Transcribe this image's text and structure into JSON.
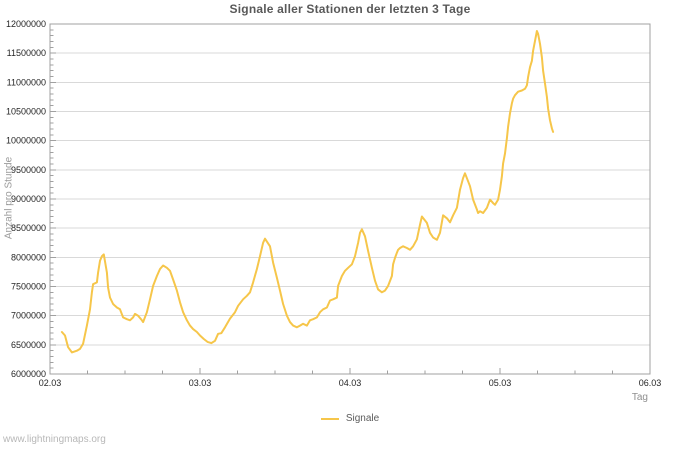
{
  "page": {
    "watermark": "www.lightningmaps.org"
  },
  "chart_data": {
    "type": "line",
    "title": "Signale aller Stationen der letzten 3 Tage",
    "xlabel": "Tag",
    "ylabel": "Anzahl pro Stunde",
    "x_tick_labels": [
      "02.03",
      "03.03",
      "04.03",
      "05.03",
      "06.03"
    ],
    "x_range_hours": [
      0,
      96
    ],
    "x_minor_step_hours": 6,
    "ylim": [
      6000000,
      12000000
    ],
    "y_major_step": 500000,
    "y_minor_step": 100000,
    "grid": "horizontal-major-only",
    "legend_position": "bottom-center",
    "colors": {
      "line": "#f6c64a",
      "grid": "#d9d9d9",
      "frame": "#a0a0a0",
      "tick_text": "#262626",
      "title_text": "#595959",
      "muted_text": "#8f8f8f",
      "watermark_text": "#b8b8b8"
    },
    "series": [
      {
        "name": "Signale",
        "color": "#f6c64a",
        "points_hours_value": [
          [
            1.9,
            6720000
          ],
          [
            2.4,
            6660000
          ],
          [
            2.9,
            6460000
          ],
          [
            3.5,
            6370000
          ],
          [
            4.3,
            6400000
          ],
          [
            4.8,
            6430000
          ],
          [
            5.3,
            6520000
          ],
          [
            5.9,
            6830000
          ],
          [
            6.4,
            7110000
          ],
          [
            6.7,
            7400000
          ],
          [
            6.9,
            7540000
          ],
          [
            7.5,
            7570000
          ],
          [
            7.7,
            7740000
          ],
          [
            8.0,
            7940000
          ],
          [
            8.3,
            8020000
          ],
          [
            8.6,
            8050000
          ],
          [
            9.1,
            7740000
          ],
          [
            9.3,
            7480000
          ],
          [
            9.6,
            7310000
          ],
          [
            10.1,
            7200000
          ],
          [
            10.4,
            7170000
          ],
          [
            10.7,
            7140000
          ],
          [
            11.2,
            7110000
          ],
          [
            11.7,
            6970000
          ],
          [
            12.3,
            6940000
          ],
          [
            12.8,
            6920000
          ],
          [
            13.3,
            6970000
          ],
          [
            13.6,
            7030000
          ],
          [
            14.1,
            7000000
          ],
          [
            14.7,
            6920000
          ],
          [
            14.9,
            6890000
          ],
          [
            15.5,
            7060000
          ],
          [
            16.0,
            7280000
          ],
          [
            16.5,
            7510000
          ],
          [
            17.1,
            7680000
          ],
          [
            17.6,
            7800000
          ],
          [
            18.1,
            7860000
          ],
          [
            18.7,
            7820000
          ],
          [
            19.2,
            7770000
          ],
          [
            19.7,
            7620000
          ],
          [
            20.3,
            7430000
          ],
          [
            20.8,
            7230000
          ],
          [
            21.3,
            7060000
          ],
          [
            21.9,
            6920000
          ],
          [
            22.4,
            6830000
          ],
          [
            22.9,
            6770000
          ],
          [
            23.5,
            6720000
          ],
          [
            24.0,
            6660000
          ],
          [
            24.6,
            6600000
          ],
          [
            25.2,
            6550000
          ],
          [
            25.8,
            6530000
          ],
          [
            26.4,
            6570000
          ],
          [
            26.9,
            6690000
          ],
          [
            27.4,
            6700000
          ],
          [
            28.0,
            6800000
          ],
          [
            28.8,
            6950000
          ],
          [
            29.6,
            7060000
          ],
          [
            30.1,
            7170000
          ],
          [
            30.9,
            7280000
          ],
          [
            31.5,
            7340000
          ],
          [
            32.0,
            7400000
          ],
          [
            32.5,
            7570000
          ],
          [
            33.1,
            7800000
          ],
          [
            33.6,
            8020000
          ],
          [
            34.1,
            8250000
          ],
          [
            34.4,
            8320000
          ],
          [
            35.2,
            8190000
          ],
          [
            35.7,
            7910000
          ],
          [
            36.3,
            7650000
          ],
          [
            36.8,
            7430000
          ],
          [
            37.3,
            7200000
          ],
          [
            37.9,
            7000000
          ],
          [
            38.4,
            6890000
          ],
          [
            38.9,
            6830000
          ],
          [
            39.5,
            6800000
          ],
          [
            40.0,
            6830000
          ],
          [
            40.5,
            6860000
          ],
          [
            41.1,
            6830000
          ],
          [
            41.6,
            6920000
          ],
          [
            42.1,
            6940000
          ],
          [
            42.7,
            6970000
          ],
          [
            43.2,
            7060000
          ],
          [
            43.7,
            7110000
          ],
          [
            44.3,
            7140000
          ],
          [
            44.8,
            7260000
          ],
          [
            45.3,
            7280000
          ],
          [
            45.9,
            7310000
          ],
          [
            46.1,
            7510000
          ],
          [
            46.7,
            7680000
          ],
          [
            47.2,
            7770000
          ],
          [
            47.7,
            7820000
          ],
          [
            48.3,
            7880000
          ],
          [
            48.8,
            8020000
          ],
          [
            49.3,
            8250000
          ],
          [
            49.6,
            8420000
          ],
          [
            49.9,
            8480000
          ],
          [
            50.4,
            8360000
          ],
          [
            50.9,
            8110000
          ],
          [
            51.5,
            7820000
          ],
          [
            52.0,
            7600000
          ],
          [
            52.5,
            7450000
          ],
          [
            53.1,
            7400000
          ],
          [
            53.6,
            7430000
          ],
          [
            54.1,
            7510000
          ],
          [
            54.7,
            7680000
          ],
          [
            54.9,
            7880000
          ],
          [
            55.2,
            7990000
          ],
          [
            55.5,
            8080000
          ],
          [
            55.7,
            8130000
          ],
          [
            56.0,
            8160000
          ],
          [
            56.5,
            8190000
          ],
          [
            57.1,
            8160000
          ],
          [
            57.6,
            8130000
          ],
          [
            58.1,
            8190000
          ],
          [
            58.7,
            8310000
          ],
          [
            59.2,
            8560000
          ],
          [
            59.5,
            8700000
          ],
          [
            60.3,
            8590000
          ],
          [
            60.8,
            8420000
          ],
          [
            61.3,
            8340000
          ],
          [
            61.9,
            8300000
          ],
          [
            62.4,
            8420000
          ],
          [
            62.9,
            8720000
          ],
          [
            63.5,
            8670000
          ],
          [
            64.0,
            8600000
          ],
          [
            64.5,
            8720000
          ],
          [
            65.1,
            8850000
          ],
          [
            65.6,
            9160000
          ],
          [
            66.1,
            9360000
          ],
          [
            66.4,
            9440000
          ],
          [
            67.2,
            9220000
          ],
          [
            67.7,
            8990000
          ],
          [
            68.3,
            8820000
          ],
          [
            68.5,
            8760000
          ],
          [
            68.8,
            8790000
          ],
          [
            69.3,
            8760000
          ],
          [
            69.9,
            8850000
          ],
          [
            70.4,
            8990000
          ],
          [
            70.9,
            8930000
          ],
          [
            71.2,
            8900000
          ],
          [
            71.7,
            8990000
          ],
          [
            72.0,
            9160000
          ],
          [
            72.3,
            9390000
          ],
          [
            72.5,
            9610000
          ],
          [
            72.8,
            9780000
          ],
          [
            73.1,
            10040000
          ],
          [
            73.3,
            10240000
          ],
          [
            73.6,
            10470000
          ],
          [
            73.9,
            10640000
          ],
          [
            74.1,
            10720000
          ],
          [
            74.4,
            10780000
          ],
          [
            74.9,
            10840000
          ],
          [
            75.5,
            10860000
          ],
          [
            76.0,
            10890000
          ],
          [
            76.3,
            10950000
          ],
          [
            76.5,
            11090000
          ],
          [
            76.8,
            11260000
          ],
          [
            77.1,
            11370000
          ],
          [
            77.3,
            11540000
          ],
          [
            77.6,
            11710000
          ],
          [
            77.9,
            11880000
          ],
          [
            78.1,
            11830000
          ],
          [
            78.4,
            11660000
          ],
          [
            78.7,
            11430000
          ],
          [
            78.9,
            11200000
          ],
          [
            79.2,
            10980000
          ],
          [
            79.5,
            10750000
          ],
          [
            79.7,
            10550000
          ],
          [
            80.0,
            10350000
          ],
          [
            80.3,
            10210000
          ],
          [
            80.5,
            10150000
          ]
        ]
      }
    ]
  }
}
